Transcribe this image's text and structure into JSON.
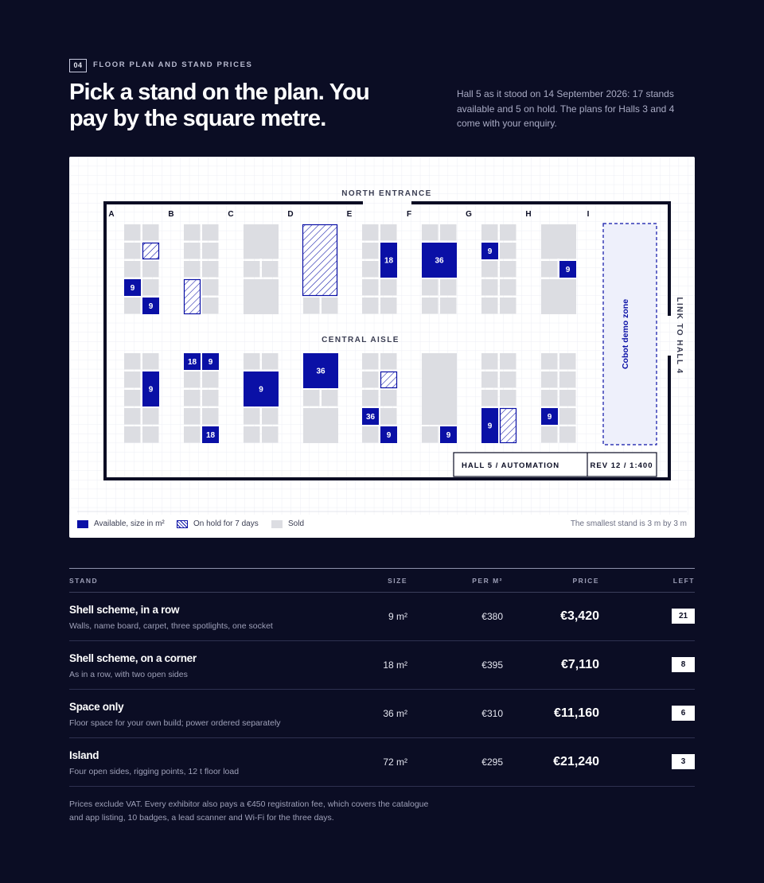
{
  "header": {
    "section_number": "04",
    "eyebrow": "FLOOR PLAN AND STAND PRICES",
    "headline": "Pick a stand on the plan. You pay by the square metre.",
    "intro": "Hall 5 as it stood on 14 September 2026: 17 stands available and 5 on hold. The plans for Halls 3 and 4 come with your enquiry."
  },
  "plan": {
    "north_label": "NORTH ENTRANCE",
    "aisle_label": "CENTRAL AISLE",
    "link_label": "LINK TO HALL 4",
    "zone_label": "Cobot demo zone",
    "hall_label": "HALL 5 / AUTOMATION",
    "rev_label": "REV 12 / 1:400",
    "columns": [
      "A",
      "B",
      "C",
      "D",
      "E",
      "F",
      "G",
      "H",
      "I"
    ],
    "available_stand_labels": [
      "9",
      "9",
      "18",
      "36",
      "9",
      "9",
      "18",
      "9",
      "9",
      "9",
      "36",
      "36",
      "9",
      "9",
      "9",
      "18",
      "9"
    ],
    "colors": {
      "available": "#0a10a6",
      "sold": "#dcdde2",
      "hold_stroke": "#0a10a6",
      "wall": "#0b0d24"
    }
  },
  "legend": {
    "available": "Available, size in m²",
    "hold": "On hold for 7 days",
    "sold": "Sold",
    "note": "The smallest stand is 3 m by 3 m"
  },
  "table": {
    "headers": {
      "stand": "STAND",
      "size": "SIZE",
      "per_m2": "PER M²",
      "price": "PRICE",
      "left": "LEFT"
    },
    "rows": [
      {
        "name": "Shell scheme, in a row",
        "desc": "Walls, name board, carpet, three spotlights, one socket",
        "size": "9 m²",
        "per_m2": "€380",
        "price": "€3,420",
        "left": "21"
      },
      {
        "name": "Shell scheme, on a corner",
        "desc": "As in a row, with two open sides",
        "size": "18 m²",
        "per_m2": "€395",
        "price": "€7,110",
        "left": "8"
      },
      {
        "name": "Space only",
        "desc": "Floor space for your own build; power ordered separately",
        "size": "36 m²",
        "per_m2": "€310",
        "price": "€11,160",
        "left": "6"
      },
      {
        "name": "Island",
        "desc": "Four open sides, rigging points, 12 t floor load",
        "size": "72 m²",
        "per_m2": "€295",
        "price": "€21,240",
        "left": "3"
      }
    ]
  },
  "footnote": "Prices exclude VAT. Every exhibitor also pays a €450 registration fee, which covers the catalogue and app listing, 10 badges, a lead scanner and Wi-Fi for the three days."
}
